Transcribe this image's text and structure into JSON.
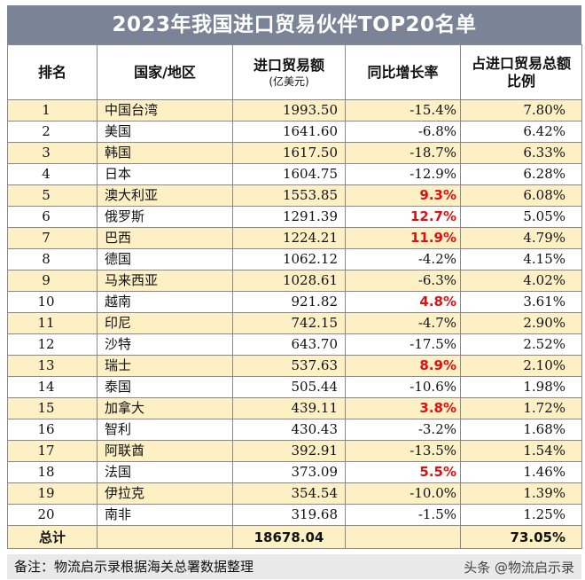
{
  "title": "2023年我国进口贸易伙伴TOP20名单",
  "headers": {
    "rank": "排名",
    "country": "国家/地区",
    "value": "进口贸易额",
    "value_unit": "(亿美元)",
    "growth": "同比增长率",
    "share_line1": "占进口贸易总额",
    "share_line2": "比例"
  },
  "rows": [
    {
      "rank": "1",
      "country": "中国台湾",
      "value": "1993.50",
      "growth": "-15.4%",
      "share": "7.80%",
      "positive": false
    },
    {
      "rank": "2",
      "country": "美国",
      "value": "1641.60",
      "growth": "-6.8%",
      "share": "6.42%",
      "positive": false
    },
    {
      "rank": "3",
      "country": "韩国",
      "value": "1617.50",
      "growth": "-18.7%",
      "share": "6.33%",
      "positive": false
    },
    {
      "rank": "4",
      "country": "日本",
      "value": "1604.75",
      "growth": "-12.9%",
      "share": "6.28%",
      "positive": false
    },
    {
      "rank": "5",
      "country": "澳大利亚",
      "value": "1553.85",
      "growth": "9.3%",
      "share": "6.08%",
      "positive": true
    },
    {
      "rank": "6",
      "country": "俄罗斯",
      "value": "1291.39",
      "growth": "12.7%",
      "share": "5.05%",
      "positive": true
    },
    {
      "rank": "7",
      "country": "巴西",
      "value": "1224.21",
      "growth": "11.9%",
      "share": "4.79%",
      "positive": true
    },
    {
      "rank": "8",
      "country": "德国",
      "value": "1062.12",
      "growth": "-4.2%",
      "share": "4.15%",
      "positive": false
    },
    {
      "rank": "9",
      "country": "马来西亚",
      "value": "1028.61",
      "growth": "-6.3%",
      "share": "4.02%",
      "positive": false
    },
    {
      "rank": "10",
      "country": "越南",
      "value": "921.82",
      "growth": "4.8%",
      "share": "3.61%",
      "positive": true
    },
    {
      "rank": "11",
      "country": "印尼",
      "value": "742.15",
      "growth": "-4.7%",
      "share": "2.90%",
      "positive": false
    },
    {
      "rank": "12",
      "country": "沙特",
      "value": "643.70",
      "growth": "-17.5%",
      "share": "2.52%",
      "positive": false
    },
    {
      "rank": "13",
      "country": "瑞士",
      "value": "537.63",
      "growth": "8.9%",
      "share": "2.10%",
      "positive": true
    },
    {
      "rank": "14",
      "country": "泰国",
      "value": "505.44",
      "growth": "-10.6%",
      "share": "1.98%",
      "positive": false
    },
    {
      "rank": "15",
      "country": "加拿大",
      "value": "439.11",
      "growth": "3.8%",
      "share": "1.72%",
      "positive": true
    },
    {
      "rank": "16",
      "country": "智利",
      "value": "430.43",
      "growth": "-3.2%",
      "share": "1.68%",
      "positive": false
    },
    {
      "rank": "17",
      "country": "阿联酋",
      "value": "392.91",
      "growth": "-13.5%",
      "share": "1.54%",
      "positive": false
    },
    {
      "rank": "18",
      "country": "法国",
      "value": "373.09",
      "growth": "5.5%",
      "share": "1.46%",
      "positive": true
    },
    {
      "rank": "19",
      "country": "伊拉克",
      "value": "354.54",
      "growth": "-10.0%",
      "share": "1.39%",
      "positive": false
    },
    {
      "rank": "20",
      "country": "南非",
      "value": "319.68",
      "growth": "-1.5%",
      "share": "1.25%",
      "positive": false
    }
  ],
  "total": {
    "label": "总计",
    "value": "18678.04",
    "share": "73.05%"
  },
  "note": "备注：物流启示录根据海关总署数据整理",
  "watermark": "头条 @物流启示录",
  "colors": {
    "header_bg": "#7b8496",
    "row_highlight": "#fdf0c4",
    "positive_growth": "#e01010"
  }
}
